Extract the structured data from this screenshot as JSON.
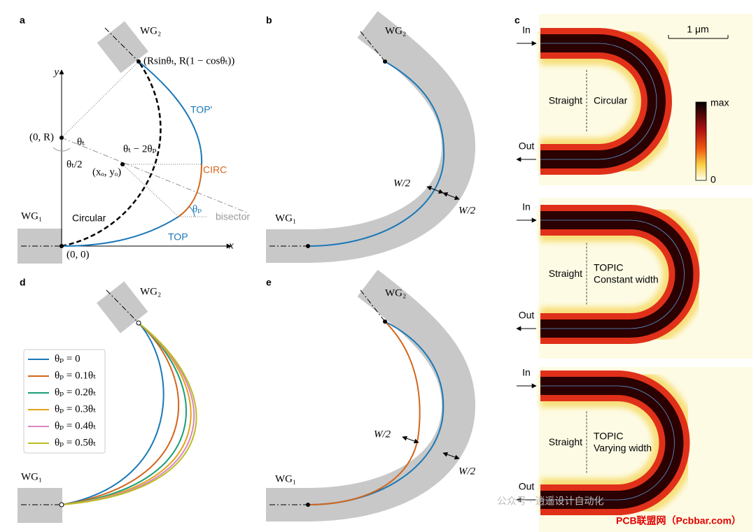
{
  "panel_a": {
    "label": "a",
    "wg2": "WG₂",
    "wg1": "WG₁",
    "end_point": "(Rsinθₜ, R(1 − cosθₜ))",
    "top_prime": "TOP'",
    "center": "(0, R)",
    "theta_t": "θₜ",
    "half_theta": "θₜ/2",
    "diff_angle": "θₜ − 2θₚ",
    "circle_center": "(xₒ, yₒ)",
    "circ": "CIRC",
    "circular": "Circular",
    "theta_p": "θₚ",
    "bisector": "bisector",
    "top": "TOP",
    "origin": "(0, 0)",
    "x_axis": "x",
    "y_axis": "y"
  },
  "panel_b": {
    "label": "b",
    "wg2": "WG₂",
    "wg1": "WG₁",
    "width_inner": "W/2",
    "width_outer": "W/2"
  },
  "panel_c": {
    "label": "c",
    "scale": "1 μm",
    "colorbar_max": "max",
    "colorbar_min": "0",
    "images": [
      {
        "in": "In",
        "out": "Out",
        "left": "Straight",
        "right": [
          "Circular"
        ]
      },
      {
        "in": "In",
        "out": "Out",
        "left": "Straight",
        "right": [
          "TOPIC",
          "Constant width"
        ]
      },
      {
        "in": "In",
        "out": "Out",
        "left": "Straight",
        "right": [
          "TOPIC",
          "Varying width"
        ]
      }
    ]
  },
  "panel_d": {
    "label": "d",
    "wg2": "WG₂",
    "wg1": "WG₁",
    "legend": [
      "θₚ = 0",
      "θₚ = 0.1θₜ",
      "θₚ = 0.2θₜ",
      "θₚ = 0.3θₜ",
      "θₚ = 0.4θₜ",
      "θₚ = 0.5θₜ"
    ]
  },
  "panel_e": {
    "label": "e",
    "wg2": "WG₂",
    "wg1": "WG₁",
    "width_inner": "W/2",
    "width_outer": "W/2"
  },
  "watermark": {
    "wechat": "公众号 · 逍遥设计自动化",
    "site": "PCB联盟网（Pcbbar.com）"
  }
}
